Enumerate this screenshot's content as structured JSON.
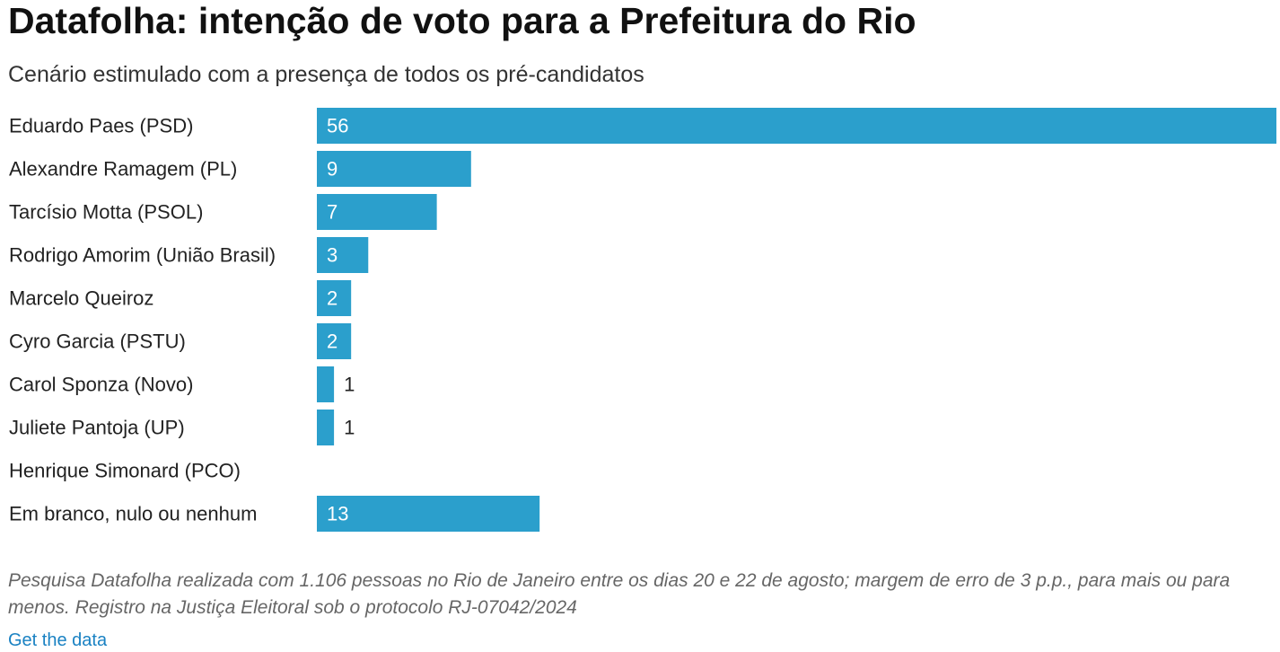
{
  "header": {
    "title": "Datafolha: intenção de voto para a Prefeitura do Rio",
    "subtitle": "Cenário estimulado com a presença de todos os pré-candidatos"
  },
  "chart_data": {
    "type": "bar",
    "orientation": "horizontal",
    "title": "Datafolha: intenção de voto para a Prefeitura do Rio",
    "subtitle": "Cenário estimulado com a presença de todos os pré-candidatos",
    "categories": [
      "Eduardo Paes (PSD)",
      "Alexandre Ramagem (PL)",
      "Tarcísio Motta (PSOL)",
      "Rodrigo Amorim (União Brasil)",
      "Marcelo Queiroz",
      "Cyro Garcia (PSTU)",
      "Carol Sponza (Novo)",
      "Juliete Pantoja (UP)",
      "Henrique Simonard (PCO)",
      "Em branco, nulo ou nenhum"
    ],
    "values": [
      56,
      9,
      7,
      3,
      2,
      2,
      1,
      1,
      null,
      13
    ],
    "xlim": [
      0,
      56
    ],
    "grid": false,
    "bar_color": "#2b9fcc",
    "label_color_inside": "#ffffff",
    "label_color_outside": "#222222"
  },
  "footer": {
    "note": "Pesquisa Datafolha realizada com 1.106 pessoas no Rio de Janeiro entre os dias 20 e 22 de agosto; margem de erro de 3 p.p., para mais ou para menos. Registro na Justiça Eleitoral sob o protocolo RJ-07042/2024",
    "get_data_label": "Get the data"
  }
}
